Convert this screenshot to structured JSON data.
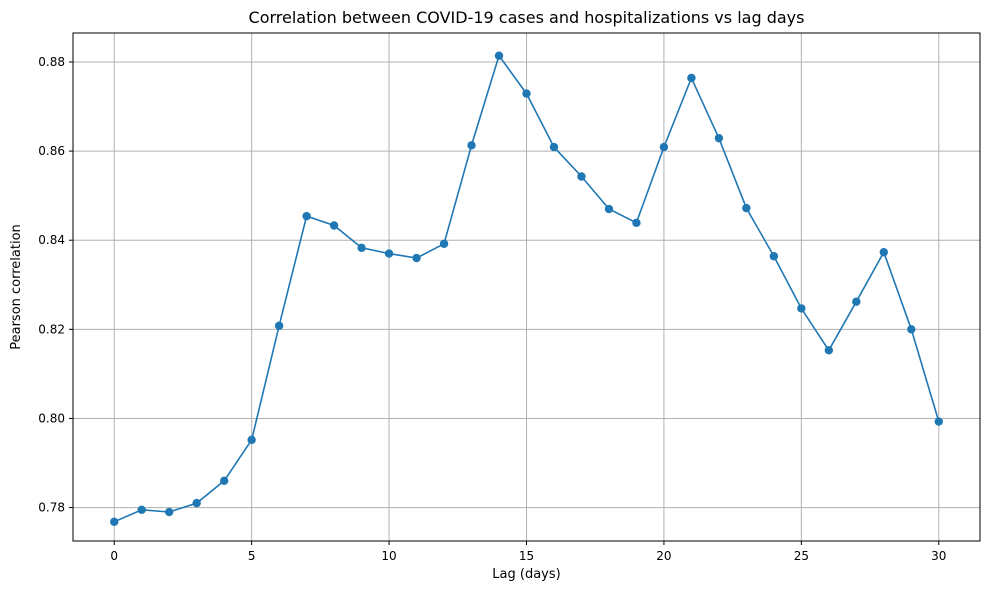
{
  "chart_data": {
    "type": "line",
    "title": "Correlation between COVID-19 cases and hospitalizations vs lag days",
    "xlabel": "Lag (days)",
    "ylabel": "Pearson correlation",
    "xlim": [
      -1.5,
      31.5
    ],
    "ylim": [
      0.7725,
      0.8865
    ],
    "xticks": [
      0,
      5,
      10,
      15,
      20,
      25,
      30
    ],
    "xtick_labels": [
      "0",
      "5",
      "10",
      "15",
      "20",
      "25",
      "30"
    ],
    "yticks": [
      0.78,
      0.8,
      0.82,
      0.84,
      0.86,
      0.88
    ],
    "ytick_labels": [
      "0.78",
      "0.80",
      "0.82",
      "0.84",
      "0.86",
      "0.88"
    ],
    "grid": true,
    "color": "#1f77b4",
    "marker": "circle",
    "series": [
      {
        "x": [
          0,
          1,
          2,
          3,
          4,
          5,
          6,
          7,
          8,
          9,
          10,
          11,
          12,
          13,
          14,
          15,
          16,
          17,
          18,
          19,
          20,
          21,
          22,
          23,
          24,
          25,
          26,
          27,
          28,
          29,
          30
        ],
        "values": [
          0.7768,
          0.7795,
          0.779,
          0.781,
          0.786,
          0.7952,
          0.8208,
          0.8454,
          0.8433,
          0.8383,
          0.837,
          0.836,
          0.8392,
          0.8613,
          0.8814,
          0.8729,
          0.8609,
          0.8543,
          0.847,
          0.8439,
          0.8609,
          0.8764,
          0.8629,
          0.8472,
          0.8364,
          0.8247,
          0.8153,
          0.8262,
          0.8373,
          0.82,
          0.7993
        ]
      }
    ]
  }
}
